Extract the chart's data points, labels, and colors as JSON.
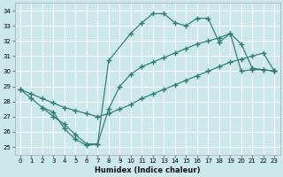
{
  "xlabel": "Humidex (Indice chaleur)",
  "xlim": [
    -0.5,
    23.5
  ],
  "ylim": [
    24.5,
    34.5
  ],
  "xticks": [
    0,
    1,
    2,
    3,
    4,
    5,
    6,
    7,
    8,
    9,
    10,
    11,
    12,
    13,
    14,
    15,
    16,
    17,
    18,
    19,
    20,
    21,
    22,
    23
  ],
  "yticks": [
    25,
    26,
    27,
    28,
    29,
    30,
    31,
    32,
    33,
    34
  ],
  "bg_color": "#cce8ea",
  "line_color": "#2e7d6e",
  "grid_color": "#ffffff",
  "line1_x": [
    0,
    1,
    2,
    3,
    4,
    5,
    6,
    7,
    8,
    10,
    11,
    12,
    13,
    14,
    15,
    16,
    17,
    18,
    19,
    20,
    21,
    22,
    23
  ],
  "line1_y": [
    28.8,
    28.2,
    27.6,
    27.0,
    26.5,
    25.8,
    25.2,
    25.2,
    30.7,
    32.5,
    33.2,
    33.8,
    33.8,
    33.2,
    33.0,
    33.5,
    33.5,
    31.9,
    32.5,
    31.8,
    30.2,
    30.1,
    30.0
  ],
  "line2_x": [
    0,
    1,
    2,
    3,
    4,
    5,
    6,
    7,
    8,
    9,
    10,
    11,
    12,
    13,
    14,
    15,
    16,
    17,
    18,
    19,
    20,
    21,
    22,
    23
  ],
  "line2_y": [
    28.8,
    28.5,
    28.2,
    27.9,
    27.6,
    27.4,
    27.2,
    27.0,
    27.2,
    27.5,
    27.8,
    28.2,
    28.5,
    28.8,
    29.1,
    29.4,
    29.7,
    30.0,
    30.3,
    30.6,
    30.8,
    31.0,
    31.2,
    30.0
  ],
  "line3_x": [
    2,
    3,
    4,
    5,
    6,
    7,
    8,
    9,
    10,
    11,
    12,
    13,
    14,
    15,
    16,
    17,
    18,
    19,
    20,
    21,
    22,
    23
  ],
  "line3_y": [
    27.6,
    27.3,
    26.2,
    25.5,
    25.1,
    25.2,
    27.5,
    29.0,
    29.8,
    30.3,
    30.6,
    30.9,
    31.2,
    31.5,
    31.8,
    32.0,
    32.2,
    32.5,
    30.0,
    30.1,
    30.1,
    30.0
  ]
}
